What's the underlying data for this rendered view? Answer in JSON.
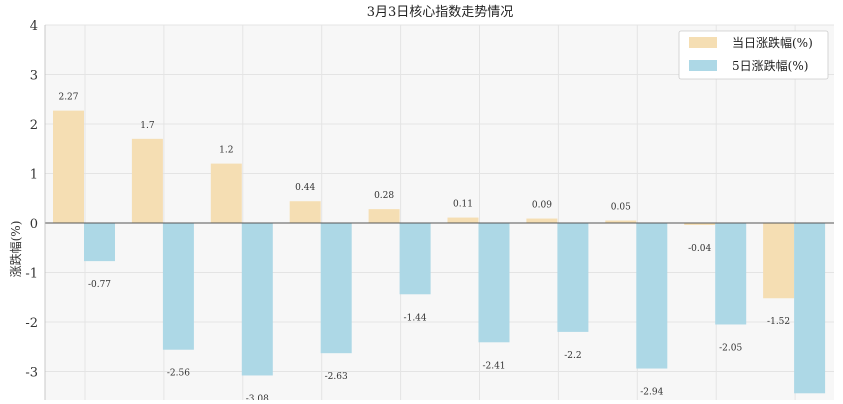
{
  "chart_data": {
    "type": "bar",
    "title": "3月3日核心指数走势情况",
    "xlabel": "",
    "ylabel": "涨跌幅(%)",
    "ylim": [
      -3.5,
      4
    ],
    "yticks": [
      4,
      3,
      2,
      1,
      0,
      -1,
      -2,
      -3
    ],
    "grid": true,
    "legend_position": "top-right",
    "categories": [
      "",
      "",
      "",
      "",
      "",
      "",
      "",
      "",
      "",
      ""
    ],
    "series": [
      {
        "name": "当日涨跌幅(%)",
        "color": "#f5deb3",
        "values": [
          2.27,
          1.7,
          1.2,
          0.44,
          0.28,
          0.11,
          0.09,
          0.05,
          -0.04,
          -1.52
        ]
      },
      {
        "name": "5日涨跌幅(%)",
        "color": "#add8e6",
        "values": [
          -0.77,
          -2.56,
          -3.08,
          -2.63,
          -1.44,
          -2.41,
          -2.2,
          -2.94,
          -2.05,
          -3.44
        ]
      }
    ]
  }
}
